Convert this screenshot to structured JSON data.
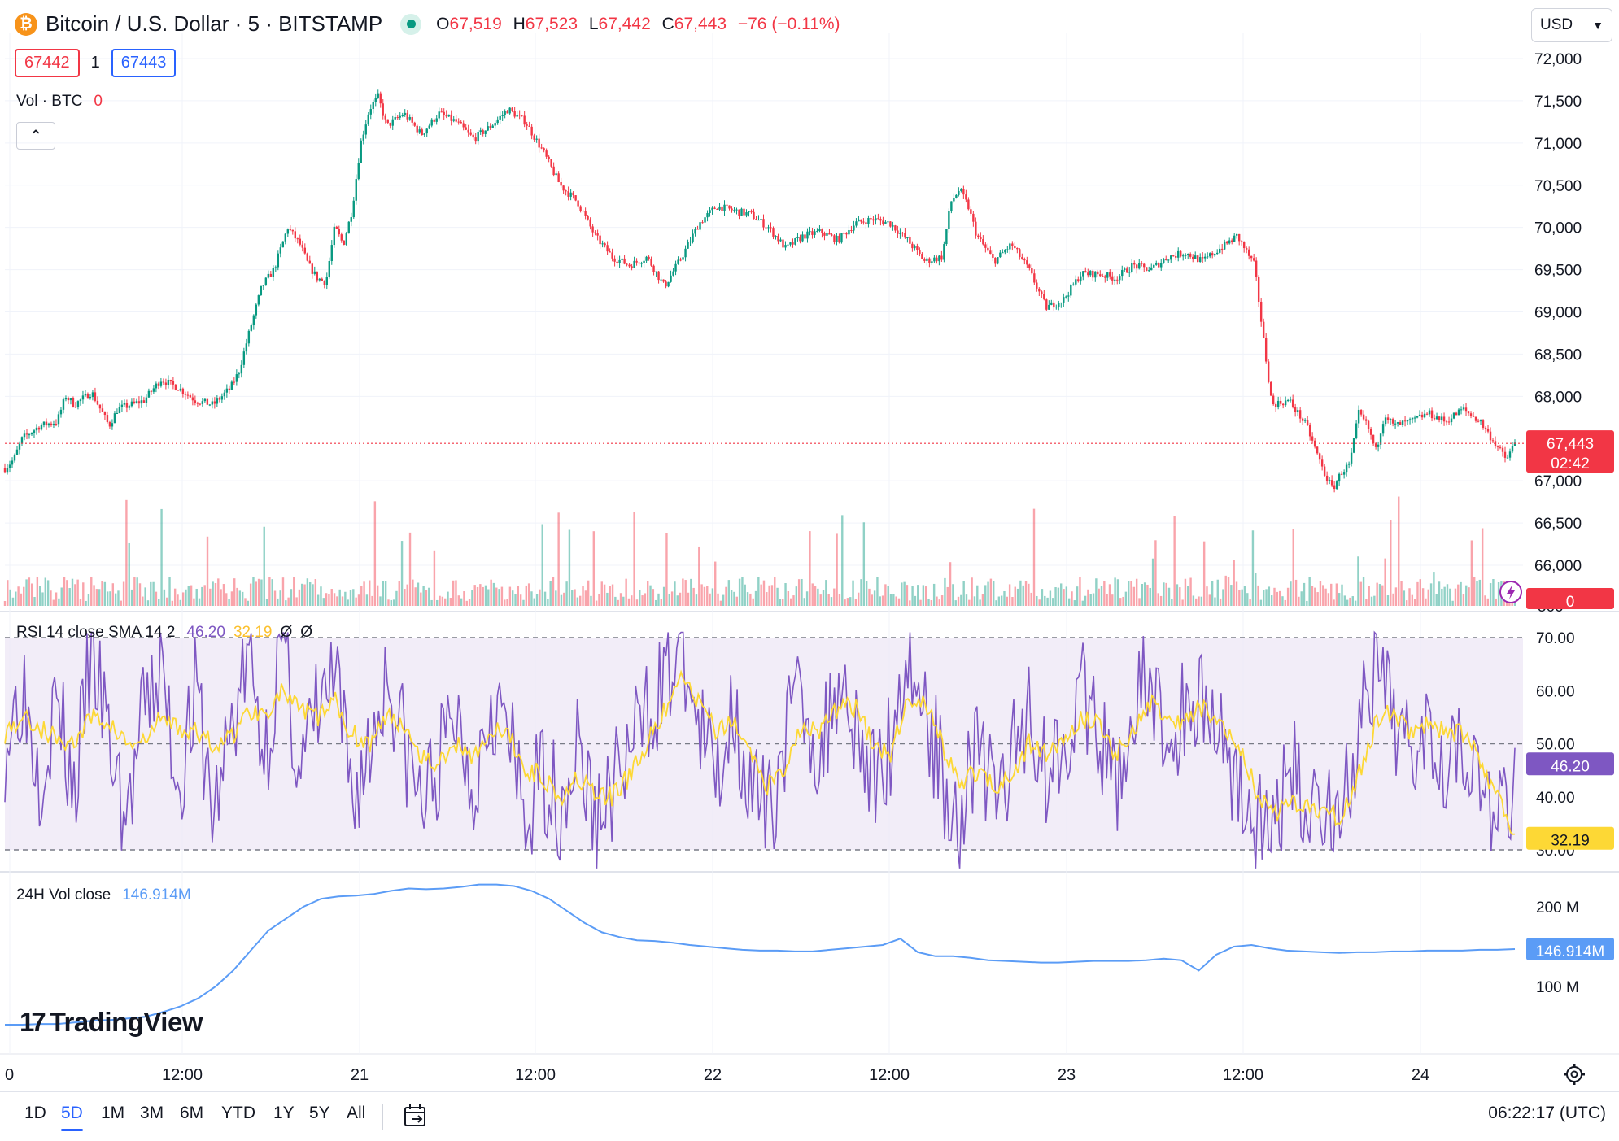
{
  "header": {
    "symbol_title": "Bitcoin / U.S. Dollar · 5 · BITSTAMP",
    "coin_glyph": "₿",
    "ohlc": {
      "o_label": "O",
      "o_value": "67,519",
      "h_label": "H",
      "h_value": "67,523",
      "l_label": "L",
      "l_value": "67,442",
      "c_label": "C",
      "c_value": "67,443",
      "change": "−76 (−0.11%)"
    },
    "bid": "67442",
    "spread": "1",
    "ask": "67443",
    "vol_label": "Vol · BTC",
    "vol_value": "0",
    "currency": "USD"
  },
  "colors": {
    "up": "#089981",
    "down": "#f23645",
    "rsi": "#7e57c2",
    "rsi_ma": "#fdd835",
    "rsi_band": "#ede7f6",
    "vol24": "#5b9cf6",
    "accent": "#2962ff"
  },
  "chart_data": [
    {
      "type": "candlestick",
      "name": "Bitcoin / U.S. Dollar · 5 · BITSTAMP",
      "x_ticks": [
        "0",
        "12:00",
        "21",
        "12:00",
        "22",
        "12:00",
        "23",
        "12:00",
        "24"
      ],
      "y_ticks": [
        "72,000",
        "71,500",
        "71,000",
        "70,500",
        "70,000",
        "69,500",
        "69,000",
        "68,500",
        "68,000",
        "67,000",
        "66,500",
        "66,000"
      ],
      "ylim": [
        65800,
        72050
      ],
      "last_price": "67,443",
      "countdown": "02:42",
      "price_path": [
        [
          0,
          67150
        ],
        [
          0.5,
          67250
        ],
        [
          1,
          67500
        ],
        [
          2,
          67650
        ],
        [
          3,
          67700
        ],
        [
          3.5,
          68000
        ],
        [
          4,
          67900
        ],
        [
          5,
          68050
        ],
        [
          6,
          67650
        ],
        [
          6.5,
          67850
        ],
        [
          8,
          67950
        ],
        [
          9,
          68200
        ],
        [
          10,
          68100
        ],
        [
          11,
          67950
        ],
        [
          12,
          67900
        ],
        [
          12.5,
          68000
        ],
        [
          13,
          68100
        ],
        [
          13.5,
          68300
        ],
        [
          14,
          68700
        ],
        [
          14.8,
          69300
        ],
        [
          15.5,
          69500
        ],
        [
          16.3,
          70000
        ],
        [
          17,
          69800
        ],
        [
          17.5,
          69550
        ],
        [
          18,
          69400
        ],
        [
          18.5,
          69350
        ],
        [
          19,
          70000
        ],
        [
          19.5,
          69800
        ],
        [
          20,
          70200
        ],
        [
          20.5,
          71000
        ],
        [
          21,
          71400
        ],
        [
          21.5,
          71550
        ],
        [
          22,
          71200
        ],
        [
          23,
          71350
        ],
        [
          24,
          71100
        ],
        [
          25,
          71350
        ],
        [
          26,
          71250
        ],
        [
          27,
          71050
        ],
        [
          28,
          71200
        ],
        [
          29,
          71400
        ],
        [
          30,
          71250
        ],
        [
          31,
          70900
        ],
        [
          32,
          70500
        ],
        [
          33,
          70300
        ],
        [
          34,
          69900
        ],
        [
          35,
          69650
        ],
        [
          36,
          69550
        ],
        [
          37,
          69650
        ],
        [
          38,
          69300
        ],
        [
          39,
          69650
        ],
        [
          40,
          70050
        ],
        [
          41,
          70250
        ],
        [
          42,
          70200
        ],
        [
          43,
          70150
        ],
        [
          44,
          70000
        ],
        [
          45,
          69750
        ],
        [
          46,
          69900
        ],
        [
          47,
          69950
        ],
        [
          48,
          69850
        ],
        [
          49,
          70050
        ],
        [
          50,
          70100
        ],
        [
          51,
          70050
        ],
        [
          52,
          69850
        ],
        [
          53,
          69600
        ],
        [
          54,
          69650
        ],
        [
          54.5,
          70300
        ],
        [
          55,
          70450
        ],
        [
          55.5,
          70250
        ],
        [
          56,
          69900
        ],
        [
          57,
          69600
        ],
        [
          58,
          69800
        ],
        [
          59,
          69500
        ],
        [
          60,
          69050
        ],
        [
          61,
          69150
        ],
        [
          62,
          69450
        ],
        [
          63,
          69450
        ],
        [
          64,
          69400
        ],
        [
          65,
          69550
        ],
        [
          66,
          69500
        ],
        [
          67,
          69650
        ],
        [
          68,
          69700
        ],
        [
          69,
          69600
        ],
        [
          70,
          69750
        ],
        [
          71,
          69900
        ],
        [
          72,
          69550
        ],
        [
          72.5,
          68700
        ],
        [
          73,
          67900
        ],
        [
          74,
          67950
        ],
        [
          75,
          67650
        ],
        [
          76,
          67100
        ],
        [
          76.5,
          66900
        ],
        [
          77,
          67100
        ],
        [
          77.5,
          67200
        ],
        [
          78,
          67800
        ],
        [
          78.5,
          67650
        ],
        [
          79,
          67350
        ],
        [
          79.5,
          67800
        ],
        [
          80,
          67650
        ],
        [
          81,
          67700
        ],
        [
          82,
          67800
        ],
        [
          83,
          67700
        ],
        [
          84,
          67850
        ],
        [
          85,
          67700
        ],
        [
          86,
          67400
        ],
        [
          86.5,
          67250
        ],
        [
          87,
          67443
        ]
      ],
      "volume_axis_tick": "500",
      "volume_badge": "0"
    },
    {
      "type": "line",
      "name": "RSI 14 close SMA 14 2",
      "legend_values": [
        "46.20",
        "32.19",
        "Ø",
        "Ø"
      ],
      "y_ticks": [
        "70.00",
        "60.00",
        "50.00",
        "40.00",
        "30.00"
      ],
      "ylim": [
        26,
        71
      ],
      "band": [
        30,
        70
      ],
      "last_rsi": "46.20",
      "last_ma": "32.19",
      "series": [
        {
          "name": "RSI",
          "values": [
            50,
            62,
            45,
            58,
            40,
            68,
            50,
            35,
            55,
            64,
            42,
            60,
            36,
            52,
            66,
            48,
            70,
            44,
            56,
            62,
            40,
            48,
            64,
            50,
            38,
            46,
            56,
            42,
            60,
            52,
            34,
            45,
            38,
            50,
            35,
            42,
            48,
            56,
            62,
            68,
            52,
            44,
            58,
            40,
            36,
            52,
            60,
            46,
            64,
            55,
            42,
            50,
            68,
            56,
            44,
            36,
            50,
            40,
            46,
            58,
            44,
            52,
            60,
            50,
            42,
            56,
            62,
            48,
            56,
            60,
            52,
            44,
            34,
            32,
            46,
            38,
            40,
            36,
            52,
            62,
            54,
            50,
            56,
            48,
            52,
            42,
            34,
            46
          ]
        },
        {
          "name": "RSI-based MA",
          "values": [
            52,
            55,
            53,
            51,
            50,
            55,
            54,
            50,
            50,
            55,
            53,
            52,
            50,
            51,
            56,
            56,
            60,
            56,
            55,
            58,
            52,
            50,
            55,
            54,
            48,
            46,
            50,
            48,
            52,
            52,
            45,
            44,
            40,
            44,
            40,
            40,
            44,
            50,
            56,
            62,
            58,
            52,
            54,
            48,
            42,
            46,
            54,
            52,
            57,
            57,
            50,
            48,
            58,
            58,
            50,
            42,
            45,
            42,
            44,
            50,
            48,
            50,
            55,
            54,
            48,
            52,
            58,
            54,
            54,
            57,
            55,
            50,
            42,
            36,
            40,
            38,
            38,
            36,
            44,
            54,
            56,
            52,
            54,
            52,
            52,
            47,
            40,
            32
          ]
        }
      ]
    },
    {
      "type": "line",
      "name": "24H Vol close",
      "legend_value": "146.914M",
      "y_ticks": [
        "200 M",
        "100 M"
      ],
      "ylim": [
        40,
        250
      ],
      "last_value": "146.914M",
      "values": [
        52,
        52,
        53,
        53,
        55,
        57,
        58,
        60,
        62,
        68,
        75,
        85,
        100,
        120,
        145,
        170,
        185,
        200,
        210,
        213,
        214,
        216,
        220,
        223,
        222,
        223,
        225,
        228,
        228,
        226,
        220,
        210,
        195,
        180,
        168,
        162,
        158,
        157,
        155,
        152,
        150,
        148,
        146,
        145,
        145,
        144,
        144,
        146,
        148,
        150,
        152,
        160,
        143,
        138,
        138,
        136,
        133,
        132,
        131,
        130,
        130,
        131,
        132,
        132,
        132,
        133,
        135,
        133,
        120,
        140,
        150,
        152,
        148,
        145,
        144,
        143,
        142,
        143,
        143,
        144,
        144,
        145,
        145,
        145,
        146,
        146,
        146.9
      ]
    }
  ],
  "x_axis": {
    "settings_icon": "gear-icon"
  },
  "bottom_bar": {
    "ranges": [
      "1D",
      "5D",
      "1M",
      "3M",
      "6M",
      "YTD",
      "1Y",
      "5Y",
      "All"
    ],
    "active_range": "5D",
    "calendar_icon": "calendar-range-icon",
    "clock": "06:22:17 (UTC)"
  },
  "branding": {
    "logo_mark": "17",
    "logo_text": "TradingView"
  }
}
